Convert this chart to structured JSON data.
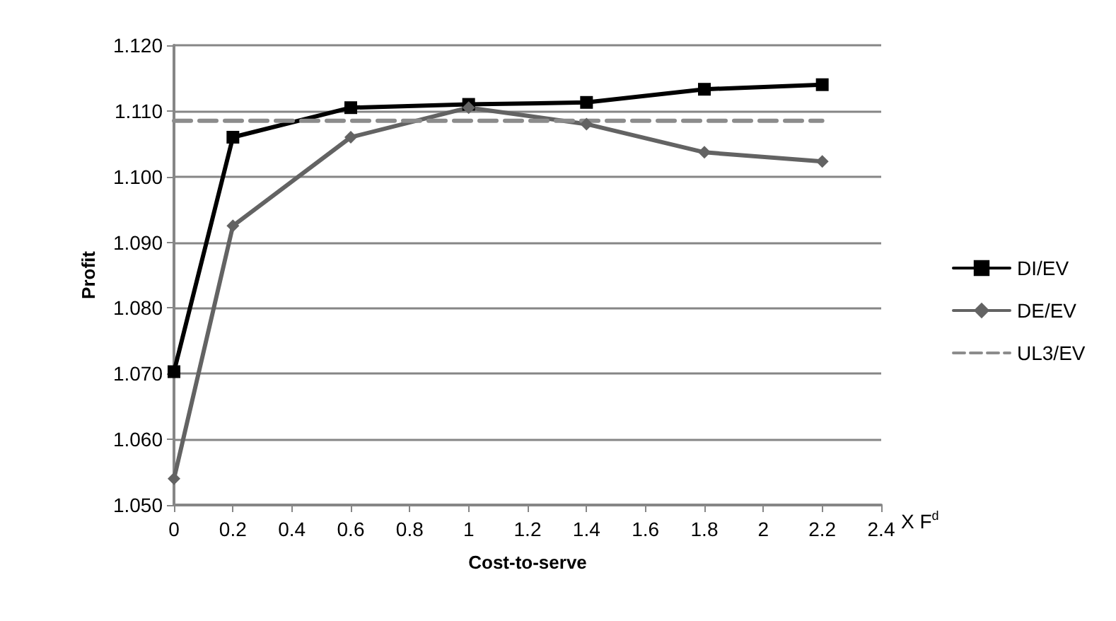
{
  "chart_data": {
    "type": "line",
    "xlabel": "Cost-to-serve",
    "ylabel": "Profit",
    "annotations": [
      "X F$^{d}$"
    ],
    "xlim": [
      0,
      2.4
    ],
    "xticks": [
      0,
      0.2,
      0.4,
      0.6,
      0.8,
      1,
      1.2,
      1.4,
      1.6,
      1.8,
      2,
      2.2,
      2.4
    ],
    "ylim": [
      1.05,
      1.12
    ],
    "yticks": [
      {
        "value": 1.05,
        "label": "1.050"
      },
      {
        "value": 1.06,
        "label": "1.060"
      },
      {
        "value": 1.07,
        "label": "1.070"
      },
      {
        "value": 1.08,
        "label": "1.080"
      },
      {
        "value": 1.09,
        "label": "1.090"
      },
      {
        "value": 1.1,
        "label": "1.100"
      },
      {
        "value": 1.11,
        "label": "1.110"
      },
      {
        "value": 1.12,
        "label": "1.120"
      }
    ],
    "grid": "y",
    "legend": "right",
    "series": [
      {
        "name": "DI/EV",
        "color": "#000000",
        "marker": "square",
        "line_style": "solid",
        "x": [
          0,
          0.2,
          0.6,
          1,
          1.4,
          1.8,
          2.2
        ],
        "values": [
          1.0703,
          1.106,
          1.1105,
          1.111,
          1.1113,
          1.1133,
          1.114
        ]
      },
      {
        "name": "DE/EV",
        "color": "#636363",
        "marker": "diamond",
        "line_style": "solid",
        "x": [
          0,
          0.2,
          0.6,
          1,
          1.4,
          1.8,
          2.2
        ],
        "values": [
          1.054,
          1.0925,
          1.106,
          1.1105,
          1.108,
          1.1037,
          1.1023
        ]
      },
      {
        "name": "UL3/EV",
        "color": "#8c8c8c",
        "marker": "none",
        "line_style": "dashed",
        "x": [
          0,
          2.2
        ],
        "values": [
          1.1085,
          1.1085
        ]
      }
    ]
  }
}
